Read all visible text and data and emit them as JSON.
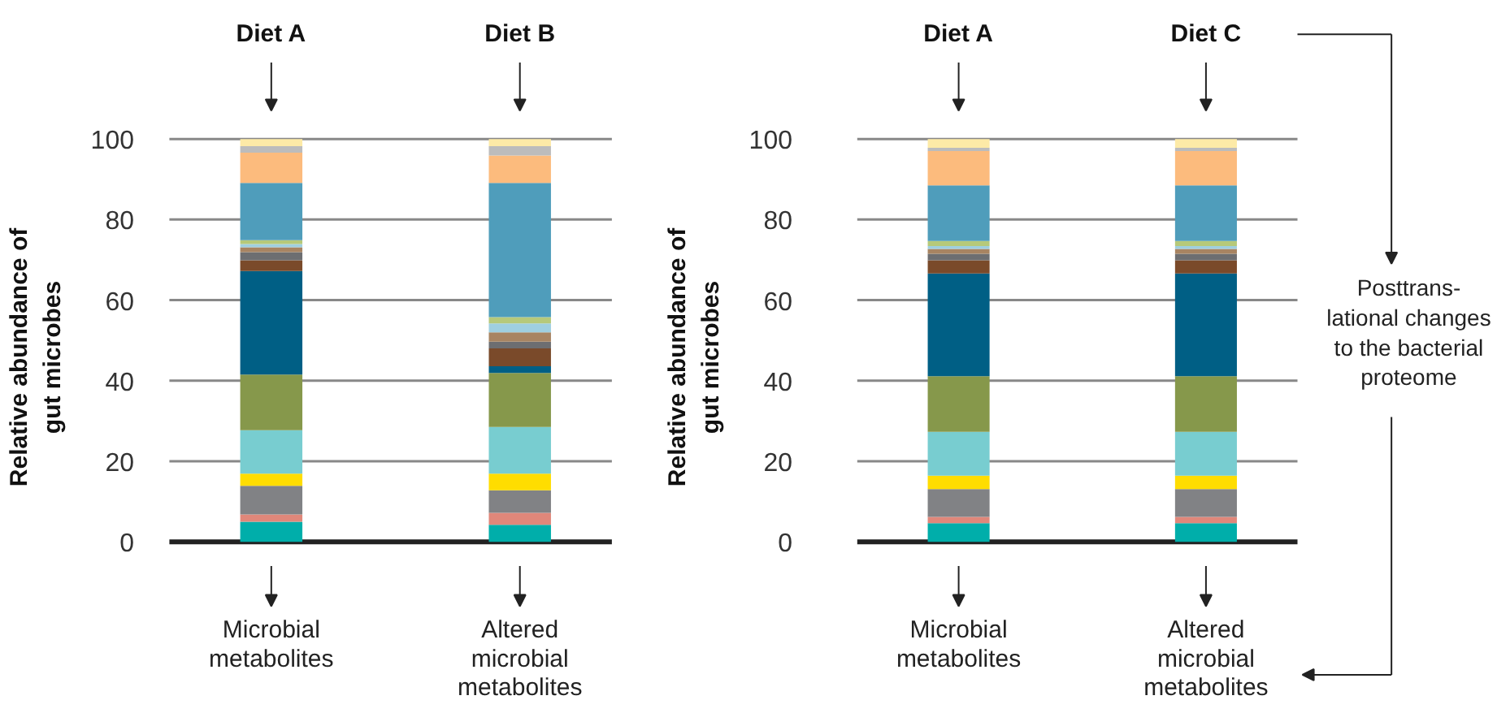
{
  "chart_data": [
    {
      "type": "bar",
      "stacked": true,
      "categories": [
        "Diet A",
        "Diet B"
      ],
      "ylabel": "Relative abundance of\ngut microbes",
      "ylim": [
        0,
        100
      ],
      "yticks": [
        0,
        20,
        40,
        60,
        80,
        100
      ],
      "grid": "y",
      "annotations": [
        "Microbial\nmetabolites",
        "Altered\nmicrobial\nmetabolites"
      ],
      "series": [
        {
          "color": "#00aeaa",
          "values": [
            5.0,
            4.2
          ]
        },
        {
          "color": "#e0877a",
          "values": [
            1.8,
            3.0
          ]
        },
        {
          "color": "#818285",
          "values": [
            7.1,
            5.6
          ]
        },
        {
          "color": "#ffdd00",
          "values": [
            3.0,
            4.1
          ]
        },
        {
          "color": "#78cdd0",
          "values": [
            10.8,
            11.6
          ]
        },
        {
          "color": "#86984b",
          "values": [
            13.8,
            13.4
          ]
        },
        {
          "color": "#005f85",
          "values": [
            25.7,
            1.7
          ]
        },
        {
          "color": "#7a4a2a",
          "values": [
            2.7,
            4.4
          ]
        },
        {
          "color": "#6d6e71",
          "values": [
            2.0,
            1.7
          ]
        },
        {
          "color": "#a88462",
          "values": [
            1.2,
            2.3
          ]
        },
        {
          "color": "#9fcfe0",
          "values": [
            0.8,
            2.2
          ]
        },
        {
          "color": "#b6c97a",
          "values": [
            1.0,
            1.6
          ]
        },
        {
          "color": "#4f9dbb",
          "values": [
            14.2,
            33.3
          ]
        },
        {
          "color": "#fcbb7d",
          "values": [
            7.5,
            6.8
          ]
        },
        {
          "color": "#bcbcbc",
          "values": [
            1.6,
            2.3
          ]
        },
        {
          "color": "#fdeaa7",
          "values": [
            1.8,
            1.8
          ]
        }
      ]
    },
    {
      "type": "bar",
      "stacked": true,
      "categories": [
        "Diet A",
        "Diet C"
      ],
      "ylabel": "Relative abundance of\ngut microbes",
      "ylim": [
        0,
        100
      ],
      "yticks": [
        0,
        20,
        40,
        60,
        80,
        100
      ],
      "grid": "y",
      "annotations": [
        "Microbial\nmetabolites",
        "Altered\nmicrobial\nmetabolites",
        "Posttrans-\nlational changes\nto the bacterial\nproteome"
      ],
      "series": [
        {
          "color": "#00aeaa",
          "values": [
            4.6,
            4.6
          ]
        },
        {
          "color": "#e0877a",
          "values": [
            1.6,
            1.6
          ]
        },
        {
          "color": "#818285",
          "values": [
            6.9,
            6.9
          ]
        },
        {
          "color": "#ffdd00",
          "values": [
            3.3,
            3.3
          ]
        },
        {
          "color": "#78cdd0",
          "values": [
            10.9,
            10.9
          ]
        },
        {
          "color": "#86984b",
          "values": [
            13.8,
            13.8
          ]
        },
        {
          "color": "#005f85",
          "values": [
            25.5,
            25.5
          ]
        },
        {
          "color": "#7a4a2a",
          "values": [
            3.3,
            3.3
          ]
        },
        {
          "color": "#6d6e71",
          "values": [
            1.6,
            1.6
          ]
        },
        {
          "color": "#a88462",
          "values": [
            1.2,
            1.2
          ]
        },
        {
          "color": "#9fcfe0",
          "values": [
            0.7,
            0.7
          ]
        },
        {
          "color": "#b6c97a",
          "values": [
            1.3,
            1.3
          ]
        },
        {
          "color": "#4f9dbb",
          "values": [
            13.8,
            13.8
          ]
        },
        {
          "color": "#fcbb7d",
          "values": [
            8.5,
            8.5
          ]
        },
        {
          "color": "#bcbcbc",
          "values": [
            0.8,
            0.8
          ]
        },
        {
          "color": "#fdeaa7",
          "values": [
            2.2,
            2.2
          ]
        }
      ]
    }
  ]
}
